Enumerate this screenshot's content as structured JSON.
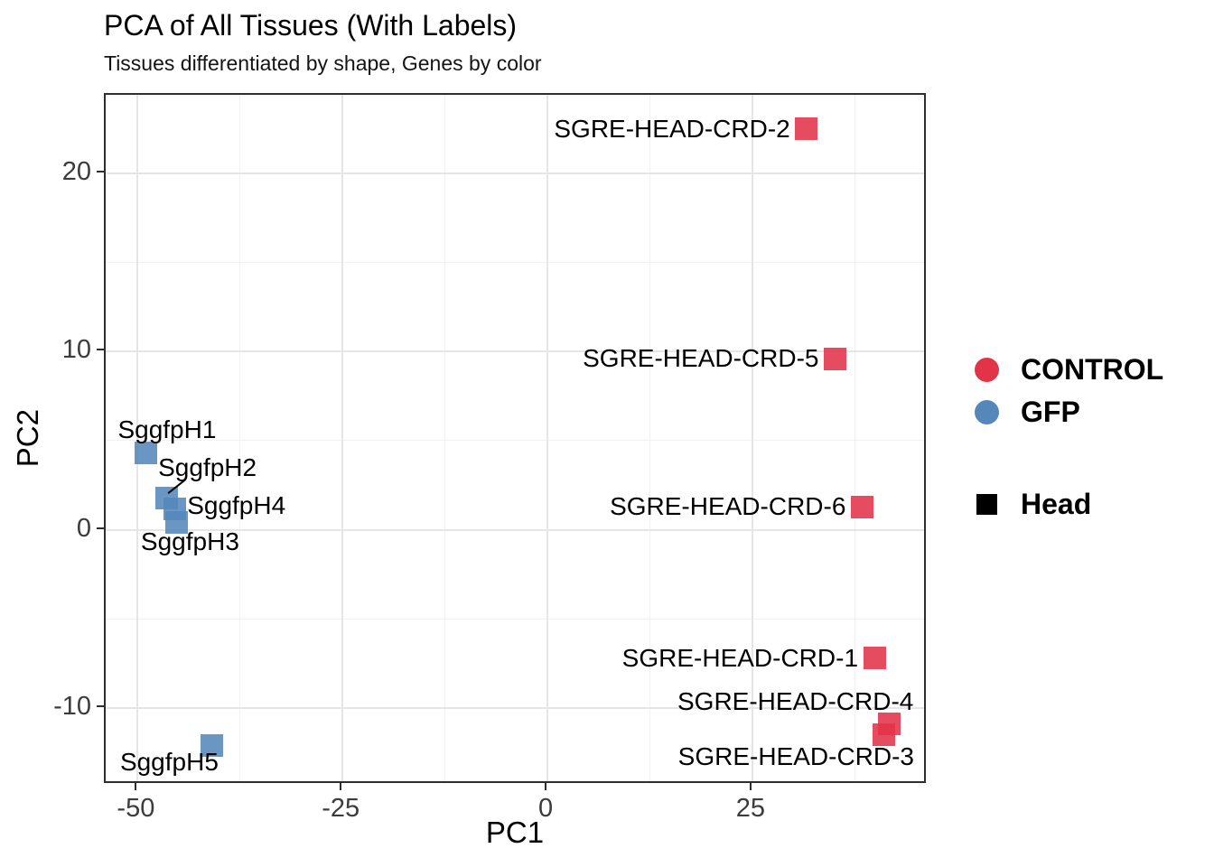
{
  "chart_data": {
    "type": "scatter",
    "title": "PCA of All Tissues (With Labels)",
    "subtitle": "Tissues differentiated by shape, Genes by color",
    "xlabel": "PC1",
    "ylabel": "PC2",
    "xlim": [
      -53.9,
      46.4
    ],
    "ylim": [
      -14.3,
      24.4
    ],
    "x_ticks": [
      -50,
      -25,
      0,
      25
    ],
    "y_ticks": [
      -10,
      0,
      10,
      20
    ],
    "x_minor_gridlines": [
      -37.5,
      -12.5,
      12.5,
      37.5
    ],
    "y_minor_gridlines": [
      -5,
      5,
      15
    ],
    "grid": "major+minor",
    "legend_position": "right",
    "marker_shape": "filled-square",
    "series": [
      {
        "name": "CONTROL",
        "color": "#E23349",
        "tissue": "Head",
        "points": [
          {
            "label": "SGRE-HEAD-CRD-1",
            "x": 39.9,
            "y": -7.2,
            "label_anchor": "end",
            "label_dx": -14,
            "label_dy": 0
          },
          {
            "label": "SGRE-HEAD-CRD-2",
            "x": 31.6,
            "y": 22.5,
            "label_anchor": "end",
            "label_dx": -14,
            "label_dy": 0
          },
          {
            "label": "SGRE-HEAD-CRD-3",
            "x": 41.0,
            "y": -11.5,
            "label_anchor": "end",
            "label_dx": 38,
            "label_dy": 24
          },
          {
            "label": "SGRE-HEAD-CRD-4",
            "x": 41.7,
            "y": -10.9,
            "label_anchor": "end",
            "label_dx": 31,
            "label_dy": -25
          },
          {
            "label": "SGRE-HEAD-CRD-5",
            "x": 35.1,
            "y": 9.6,
            "label_anchor": "end",
            "label_dx": -14,
            "label_dy": 0
          },
          {
            "label": "SGRE-HEAD-CRD-6",
            "x": 38.4,
            "y": 1.3,
            "label_anchor": "end",
            "label_dx": -14,
            "label_dy": 0
          }
        ]
      },
      {
        "name": "GFP",
        "color": "#5587BB",
        "tissue": "Head",
        "points": [
          {
            "label": "SggfpH1",
            "x": -49.0,
            "y": 4.3,
            "label_anchor": "start",
            "label_dx": -31,
            "label_dy": -26
          },
          {
            "label": "SggfpH2",
            "x": -46.5,
            "y": 1.8,
            "label_anchor": "start",
            "label_dx": -9,
            "label_dy": -33,
            "leader": true
          },
          {
            "label": "SggfpH3",
            "x": -45.2,
            "y": 0.4,
            "label_anchor": "start",
            "label_dx": -40,
            "label_dy": 21
          },
          {
            "label": "SggfpH4",
            "x": -45.5,
            "y": 1.2,
            "label_anchor": "start",
            "label_dx": 14,
            "label_dy": -3
          },
          {
            "label": "SggfpH5",
            "x": -40.9,
            "y": -12.1,
            "label_anchor": "start",
            "label_dx": -102,
            "label_dy": 18
          }
        ]
      }
    ]
  },
  "legend": {
    "color_entries": [
      {
        "label": "CONTROL",
        "color": "#E23349"
      },
      {
        "label": "GFP",
        "color": "#5587BB"
      }
    ],
    "shape_entries": [
      {
        "label": "Head",
        "color": "#000000",
        "shape": "square"
      }
    ]
  }
}
